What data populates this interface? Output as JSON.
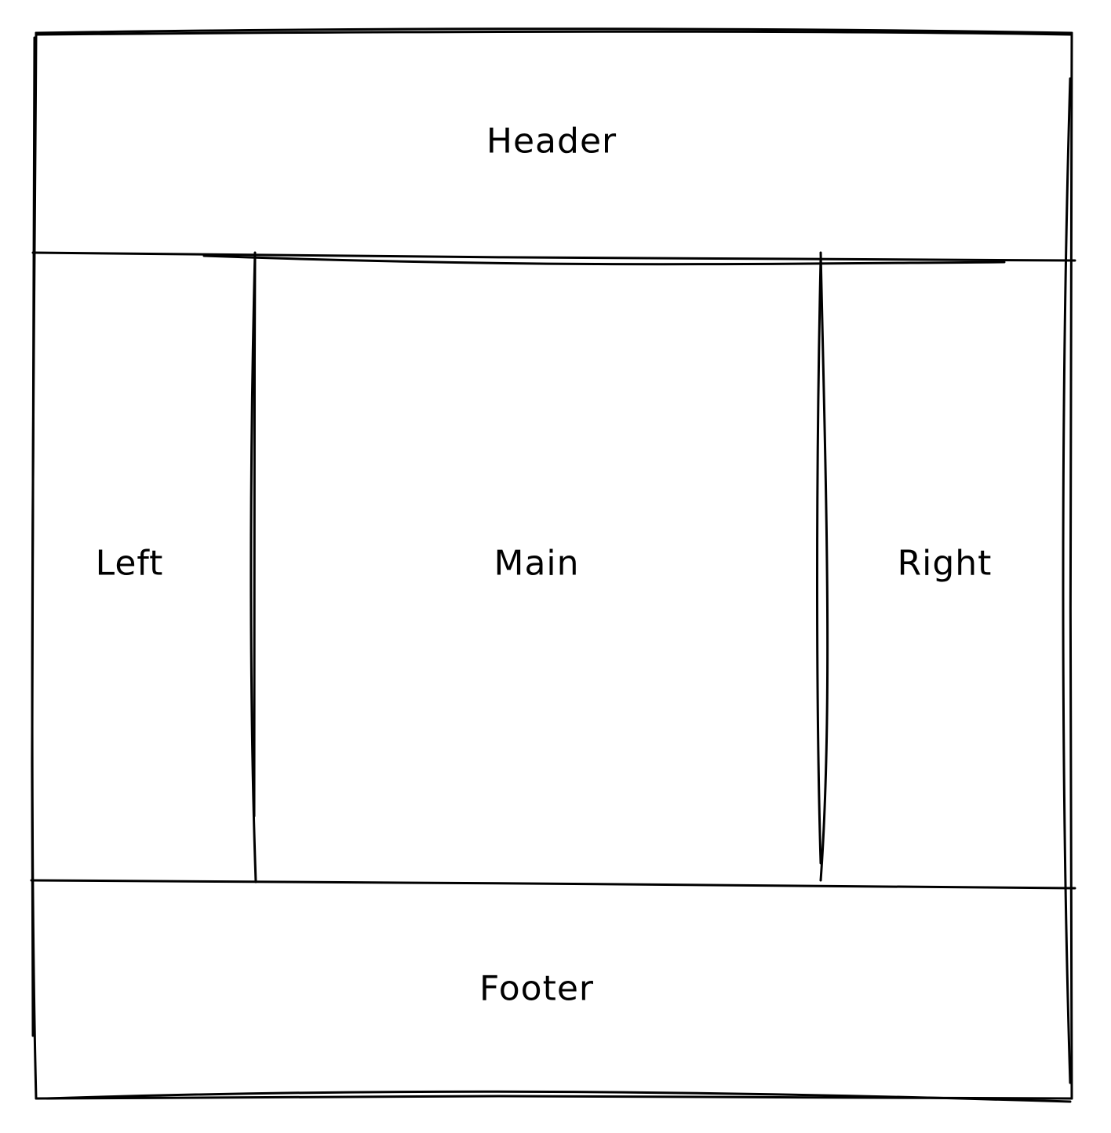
{
  "layout_diagram": {
    "regions": {
      "header": "Header",
      "left": "Left",
      "main": "Main",
      "right": "Right",
      "footer": "Footer"
    },
    "colors": {
      "stroke": "#000000",
      "background": "#ffffff"
    }
  }
}
